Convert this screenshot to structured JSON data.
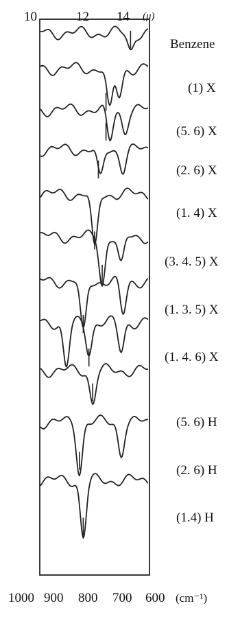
{
  "chart_data": {
    "type": "line",
    "title": "",
    "top_axis": {
      "ticks": [
        "10",
        "12",
        "14"
      ],
      "unit": "(μ)",
      "range": [
        9.6,
        15.4
      ]
    },
    "bottom_axis": {
      "ticks": [
        "1000",
        "900",
        "800",
        "700",
        "600"
      ],
      "unit": "(cm⁻¹)",
      "range": [
        1040,
        620
      ]
    },
    "grid": false,
    "series": [
      {
        "name": "Benzene",
        "baseline_um": 14.4,
        "bands_um": [
          14.4
        ]
      },
      {
        "name": "(1) X",
        "baseline_um": 13.1,
        "bands_um": [
          13.3,
          13.8
        ]
      },
      {
        "name": "(5. 6) X",
        "baseline_um": 13.1,
        "bands_um": [
          13.3,
          14.1
        ]
      },
      {
        "name": "(2. 6) X",
        "baseline_um": 12.7,
        "bands_um": [
          12.8,
          14.0
        ]
      },
      {
        "name": "(1. 4) X",
        "baseline_um": 12.5,
        "bands_um": [
          12.5
        ]
      },
      {
        "name": "(3. 4. 5) X",
        "baseline_um": 12.9,
        "bands_um": [
          12.9,
          13.9
        ]
      },
      {
        "name": "(1. 3. 5) X",
        "baseline_um": 11.9,
        "bands_um": [
          11.9,
          14.0
        ]
      },
      {
        "name": "(1. 4. 6) X",
        "baseline_um": 12.2,
        "bands_um": [
          11.0,
          12.2,
          13.9
        ]
      },
      {
        "name": "(5. 6) H",
        "baseline_um": 12.4,
        "bands_um": [
          12.4
        ]
      },
      {
        "name": "(2. 6) H",
        "baseline_um": 11.7,
        "bands_um": [
          11.7,
          13.9
        ]
      },
      {
        "name": "(1.4) H",
        "baseline_um": 11.9,
        "bands_um": [
          11.9
        ]
      }
    ]
  }
}
